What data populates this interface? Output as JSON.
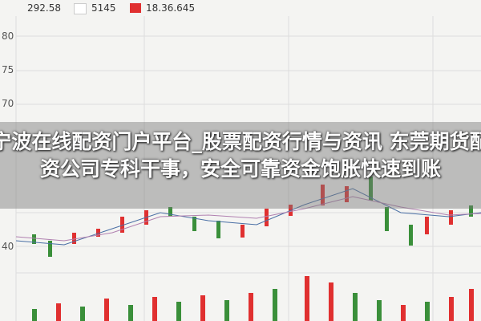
{
  "header": {
    "items": [
      "292.58",
      "5145",
      "18.36.645"
    ]
  },
  "axis_labels": [
    "80",
    "75",
    "70",
    "40"
  ],
  "title": "宁波在线配资门户平台_股票配资行情与资讯 东莞期货配资公司专科干事，安全可靠资金饱胀快速到账"
}
